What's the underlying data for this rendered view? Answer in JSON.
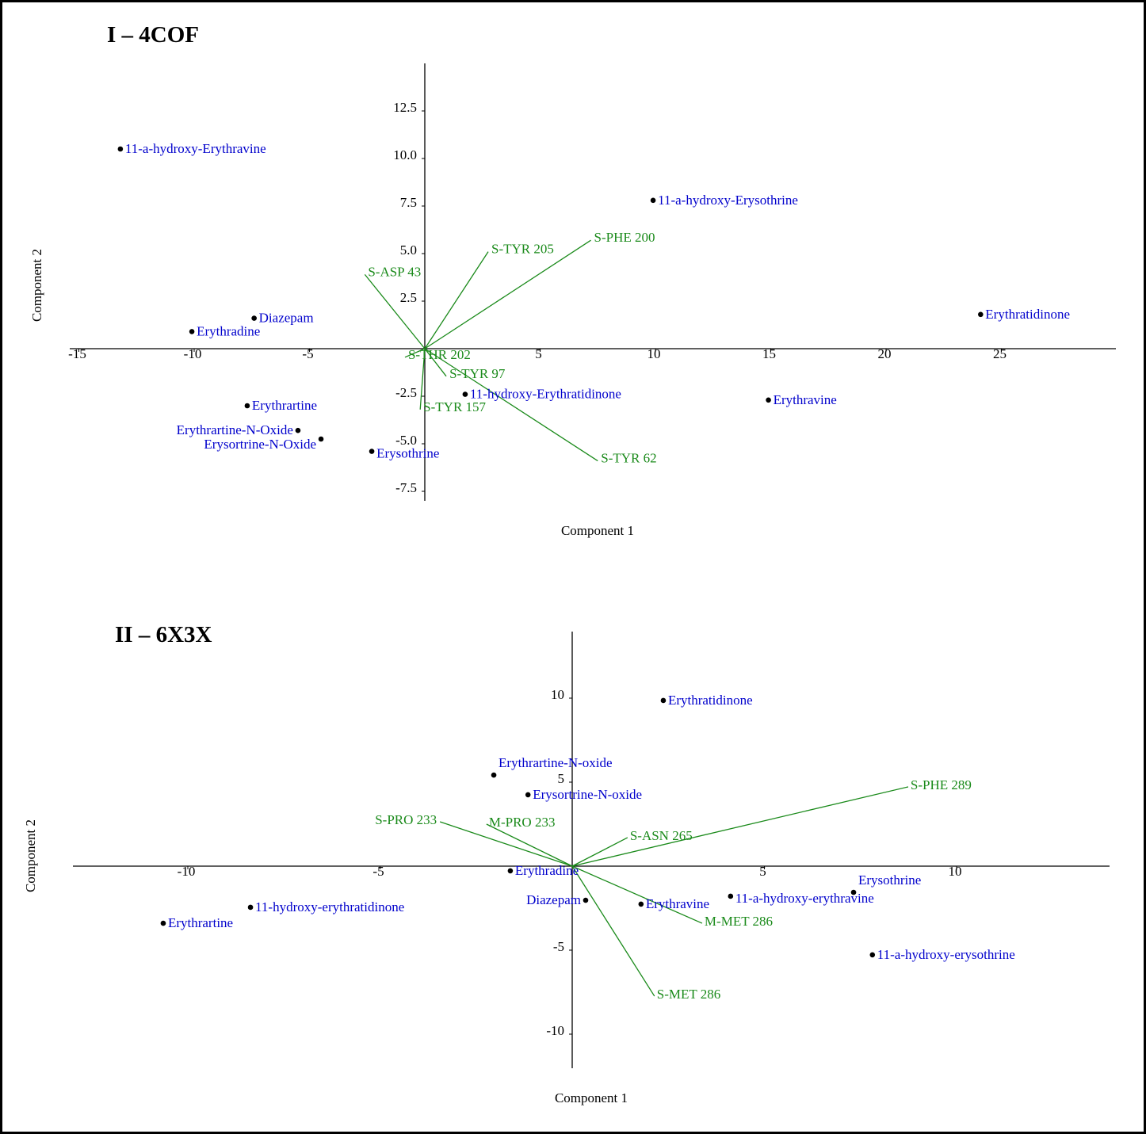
{
  "chart_data": [
    {
      "type": "scatter",
      "subtype": "biplot",
      "title": "I – 4COF",
      "xlabel": "Component 1",
      "ylabel": "Component 2",
      "xticks": [
        -15,
        -10,
        -5,
        5,
        10,
        15,
        20,
        25
      ],
      "xtick_labels": [
        "-15",
        "-10",
        "-5",
        "5",
        "10",
        "15",
        "20",
        "25"
      ],
      "yticks": [
        12.5,
        10.0,
        7.5,
        5.0,
        2.5,
        -2.5,
        -5.0,
        -7.5
      ],
      "ytick_labels": [
        "12.5",
        "10.0",
        "7.5",
        "5.0",
        "2.5",
        "-2.5",
        "-5.0",
        "-7.5"
      ],
      "xlim": [
        -15.2,
        30
      ],
      "ylim": [
        -8.1,
        15
      ],
      "colors": {
        "points": "#0000cc",
        "loadings": "#1a8a1a"
      },
      "points": [
        {
          "label": "11-a-hydroxy-Erythravine",
          "x": -13.2,
          "y": 10.5
        },
        {
          "label": "11-a-hydroxy-Erysothrine",
          "x": 9.9,
          "y": 7.8
        },
        {
          "label": "Erythratidinone",
          "x": 24.1,
          "y": 1.8
        },
        {
          "label": "Diazepam",
          "x": -7.4,
          "y": 1.6
        },
        {
          "label": "Erythradine",
          "x": -10.1,
          "y": 0.9
        },
        {
          "label": "Erythrartine",
          "x": -7.7,
          "y": -3.0
        },
        {
          "label": "Erythrartine-N-Oxide",
          "x": -5.5,
          "y": -4.3
        },
        {
          "label": "Erysortrine-N-Oxide",
          "x": -4.5,
          "y": -4.75
        },
        {
          "label": "Erysothrine",
          "x": -2.3,
          "y": -5.4
        },
        {
          "label": "11-hydroxy-Erythratidinone",
          "x": 1.75,
          "y": -2.4
        },
        {
          "label": "Erythravine",
          "x": 14.9,
          "y": -2.7
        }
      ],
      "loadings": [
        {
          "label": "S-TYR 205",
          "x": 2.75,
          "y": 5.1
        },
        {
          "label": "S-PHE 200",
          "x": 7.2,
          "y": 5.7
        },
        {
          "label": "S-ASP 43",
          "x": -2.6,
          "y": 3.9
        },
        {
          "label": "S-THR 202",
          "x": -0.86,
          "y": -0.45
        },
        {
          "label": "S-TYR 97",
          "x": 0.93,
          "y": -1.45
        },
        {
          "label": "S-TYR 157",
          "x": -0.2,
          "y": -3.2
        },
        {
          "label": "S-TYR 62",
          "x": 7.5,
          "y": -5.9
        }
      ]
    },
    {
      "type": "scatter",
      "subtype": "biplot",
      "title": "II – 6X3X",
      "xlabel": "Component 1",
      "ylabel": "Component 2",
      "xticks": [
        -10,
        -5,
        5,
        10
      ],
      "xtick_labels": [
        "-10",
        "-5",
        "5",
        "10"
      ],
      "yticks": [
        10,
        5,
        -5,
        -10
      ],
      "ytick_labels": [
        "10",
        "5",
        "-5",
        "-10"
      ],
      "xlim": [
        -13,
        14
      ],
      "ylim": [
        -12,
        14
      ],
      "colors": {
        "points": "#0000cc",
        "loadings": "#1a8a1a"
      },
      "points": [
        {
          "label": "Erythratidinone",
          "x": 2.37,
          "y": 9.86
        },
        {
          "label": "Erythrartine-N-oxide",
          "x": -2.04,
          "y": 5.42
        },
        {
          "label": "Erysortrine-N-oxide",
          "x": -1.15,
          "y": 4.25
        },
        {
          "label": "Erythradine",
          "x": -1.61,
          "y": -0.28
        },
        {
          "label": "Diazepam",
          "x": 0.35,
          "y": -2.03
        },
        {
          "label": "Erythravine",
          "x": 1.79,
          "y": -2.26
        },
        {
          "label": "11-a-hydroxy-erythravine",
          "x": 4.12,
          "y": -1.79
        },
        {
          "label": "Erysothrine",
          "x": 7.32,
          "y": -1.56
        },
        {
          "label": "11-a-hydroxy-erysothrine",
          "x": 7.81,
          "y": -5.28
        },
        {
          "label": "11-hydroxy-erythratidinone",
          "x": -8.37,
          "y": -2.45
        },
        {
          "label": "Erythrartine",
          "x": -10.64,
          "y": -3.4
        }
      ],
      "loadings": [
        {
          "label": "S-PHE 289",
          "x": 8.74,
          "y": 4.72
        },
        {
          "label": "S-ASN 265",
          "x": 1.44,
          "y": 1.7
        },
        {
          "label": "S-PRO 233",
          "x": -3.44,
          "y": 2.64
        },
        {
          "label": "M-PRO 233",
          "x": -2.23,
          "y": 2.5
        },
        {
          "label": "M-MET 286",
          "x": 3.38,
          "y": -3.4
        },
        {
          "label": "S-MET 286",
          "x": 2.14,
          "y": -7.74
        }
      ]
    }
  ]
}
